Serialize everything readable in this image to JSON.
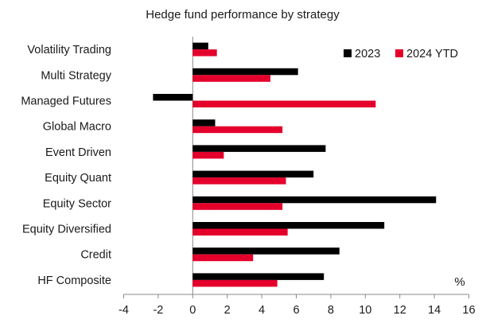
{
  "chart_data": {
    "type": "bar",
    "orientation": "horizontal",
    "title": "Hedge fund performance by strategy",
    "unit_label": "%",
    "categories": [
      "Volatility Trading",
      "Multi Strategy",
      "Managed Futures",
      "Global Macro",
      "Event Driven",
      "Equity Quant",
      "Equity Sector",
      "Equity Diversified",
      "Credit",
      "HF Composite"
    ],
    "series": [
      {
        "name": "2023",
        "color": "#000000",
        "values": [
          0.9,
          6.1,
          -2.3,
          1.3,
          7.7,
          7.0,
          14.1,
          11.1,
          8.5,
          7.6
        ]
      },
      {
        "name": "2024 YTD",
        "color": "#e4002b",
        "values": [
          1.4,
          4.5,
          10.6,
          5.2,
          1.8,
          5.4,
          5.2,
          5.5,
          3.5,
          4.9
        ]
      }
    ],
    "xlim": [
      -4,
      16
    ],
    "xticks": [
      "-4",
      "-2",
      "0",
      "2",
      "4",
      "6",
      "8",
      "10",
      "12",
      "14",
      "16"
    ],
    "legend_position": "top-right",
    "grid": false
  }
}
